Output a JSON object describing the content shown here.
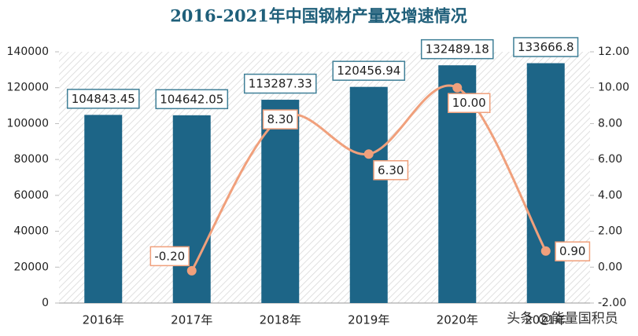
{
  "chart_data": {
    "type": "bar",
    "title": "2016-2021年中国钢材产量及增速情况",
    "categories": [
      "2016年",
      "2017年",
      "2018年",
      "2019年",
      "2020年",
      "2021年"
    ],
    "series": [
      {
        "type": "bar",
        "color": "#1d6587",
        "values": [
          104843.45,
          104642.05,
          113287.33,
          120456.94,
          132489.18,
          133666.8
        ]
      },
      {
        "type": "line",
        "axis": "y2",
        "color": "#f0a07c",
        "values": [
          null,
          -0.2,
          8.3,
          6.3,
          10.0,
          0.9
        ],
        "value_labels": [
          null,
          "-0.20",
          "8.30",
          "6.30",
          "10.00",
          "0.90"
        ]
      }
    ],
    "ylim": [
      0,
      140000
    ],
    "yticks": [
      0,
      20000,
      40000,
      60000,
      80000,
      100000,
      120000,
      140000
    ],
    "y2lim": [
      -2,
      12
    ],
    "y2ticks": [
      {
        "value": -2,
        "label": "-2.00"
      },
      {
        "value": 0,
        "label": "0.00"
      },
      {
        "value": 2,
        "label": "2.00"
      },
      {
        "value": 4,
        "label": "4.00"
      },
      {
        "value": 6,
        "label": "6.00"
      },
      {
        "value": 8,
        "label": "8.00"
      },
      {
        "value": 10,
        "label": "10.00"
      },
      {
        "value": 12,
        "label": "12.00"
      }
    ],
    "watermark": "头条 @能量国积员"
  }
}
